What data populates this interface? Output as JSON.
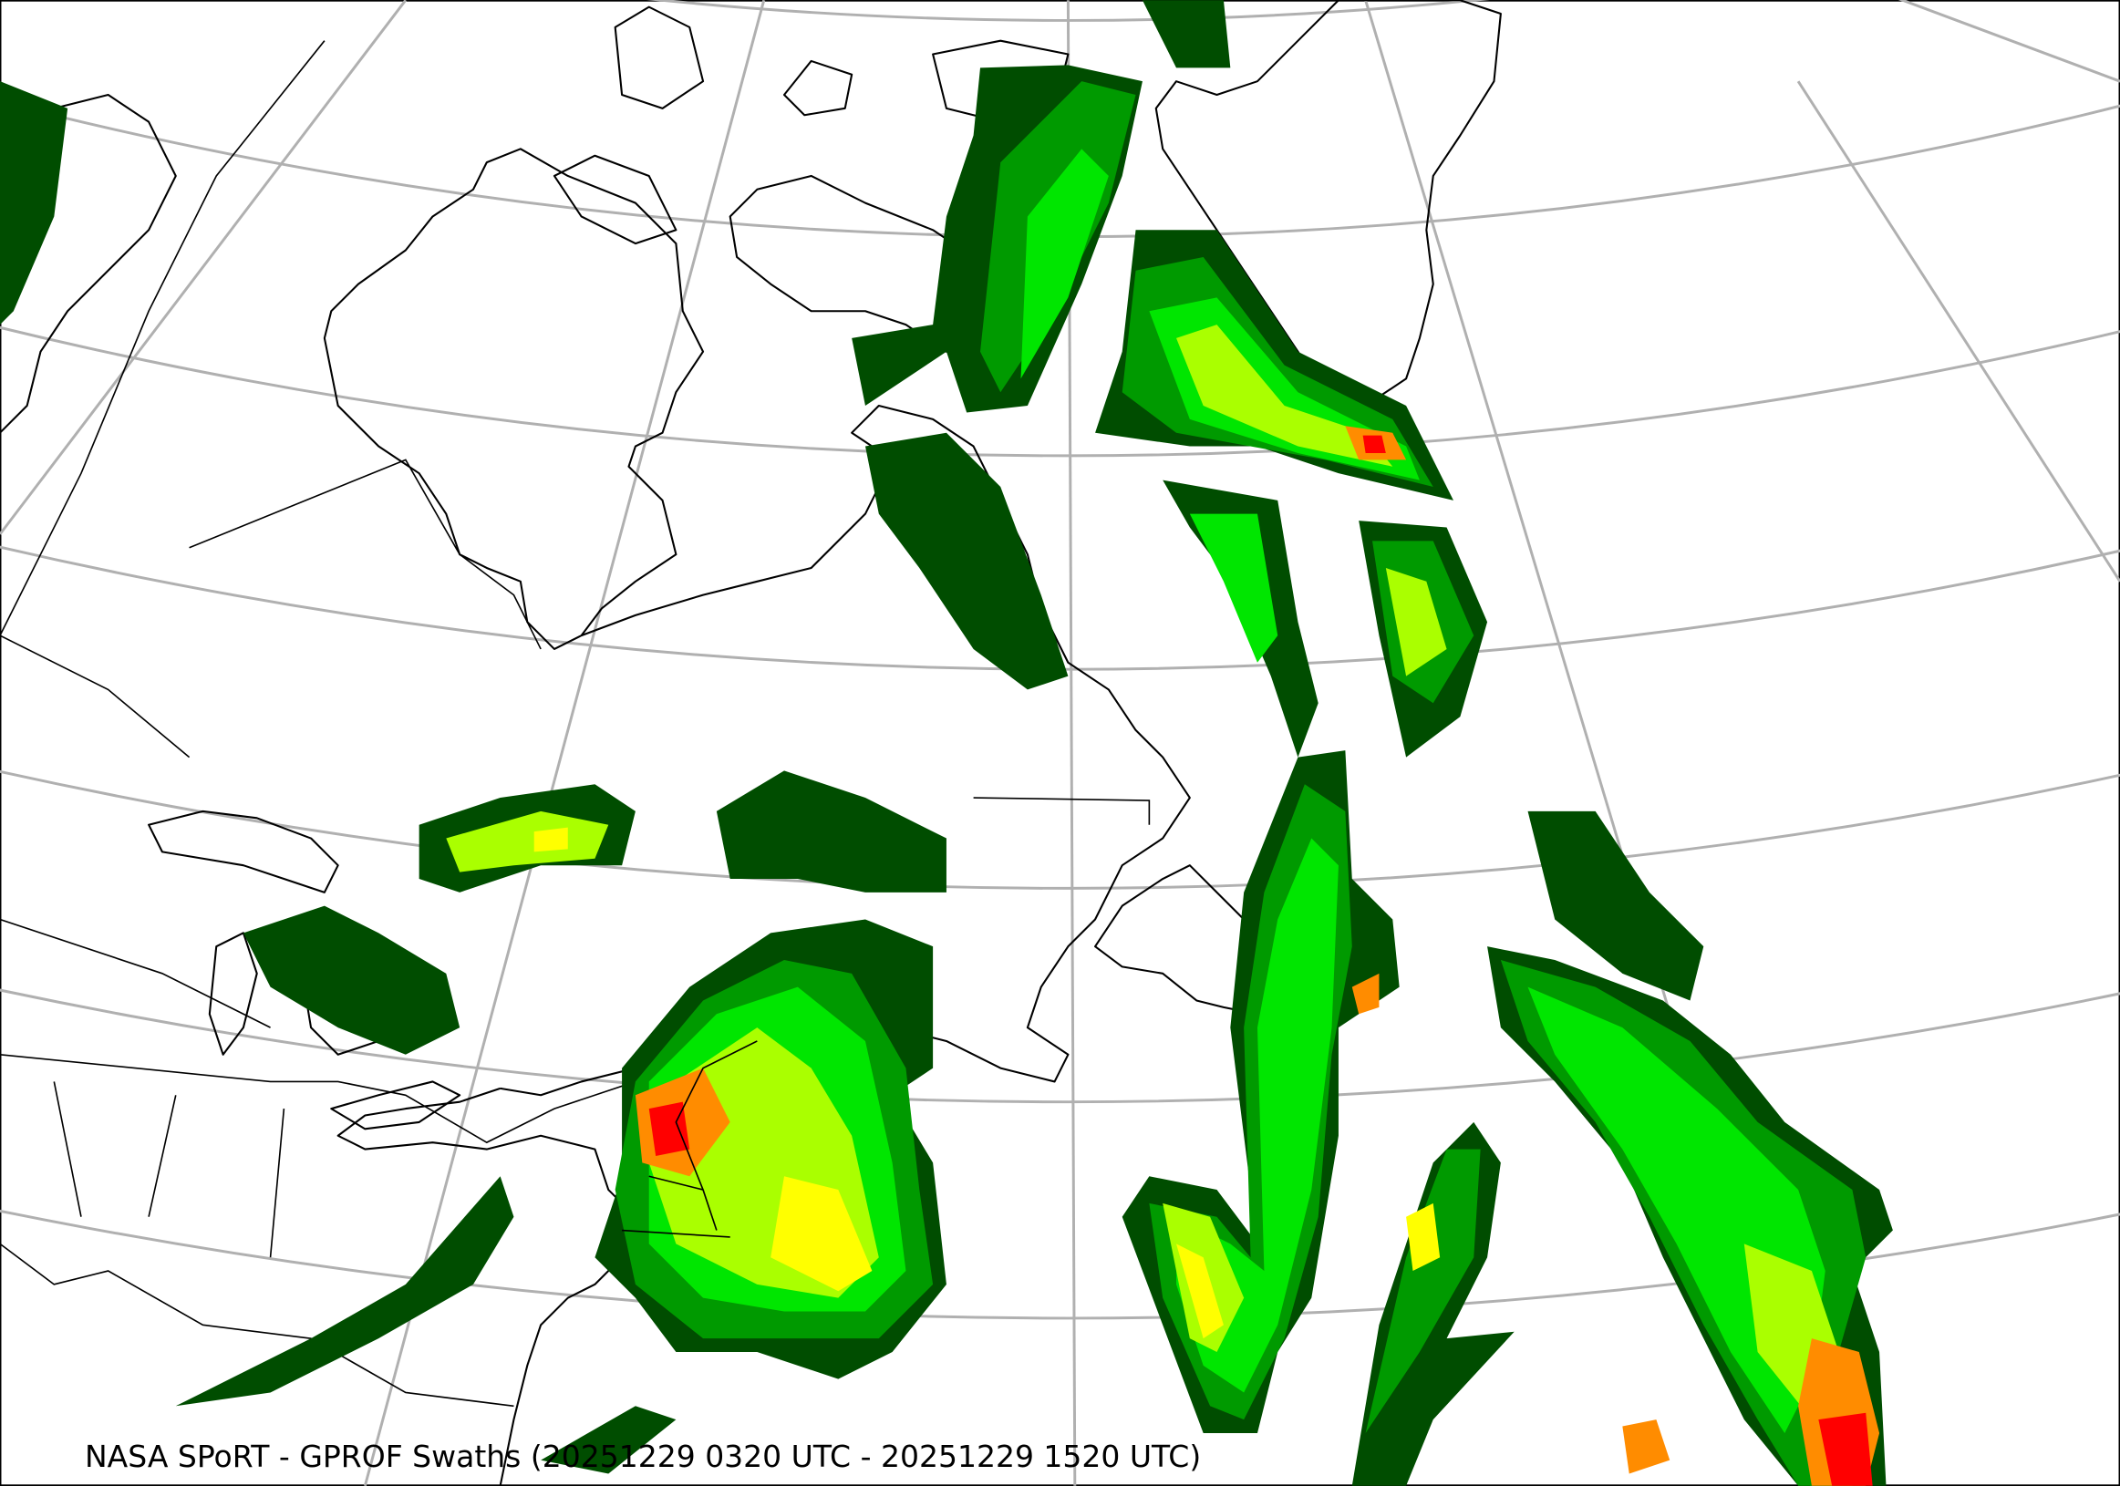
{
  "caption": "NASA SPoRT - GPROF Swaths (20251229 0320 UTC - 20251229 1520 UTC)",
  "colors": {
    "graticule": "#b0b0b0",
    "coastline": "#000000",
    "precip_very_light": "#004d00",
    "precip_light": "#009a00",
    "precip_moderate_low": "#00e600",
    "precip_moderate": "#aaff00",
    "precip_heavy": "#ffff00",
    "precip_very_heavy": "#ff8c00",
    "precip_extreme": "#ff0000"
  }
}
